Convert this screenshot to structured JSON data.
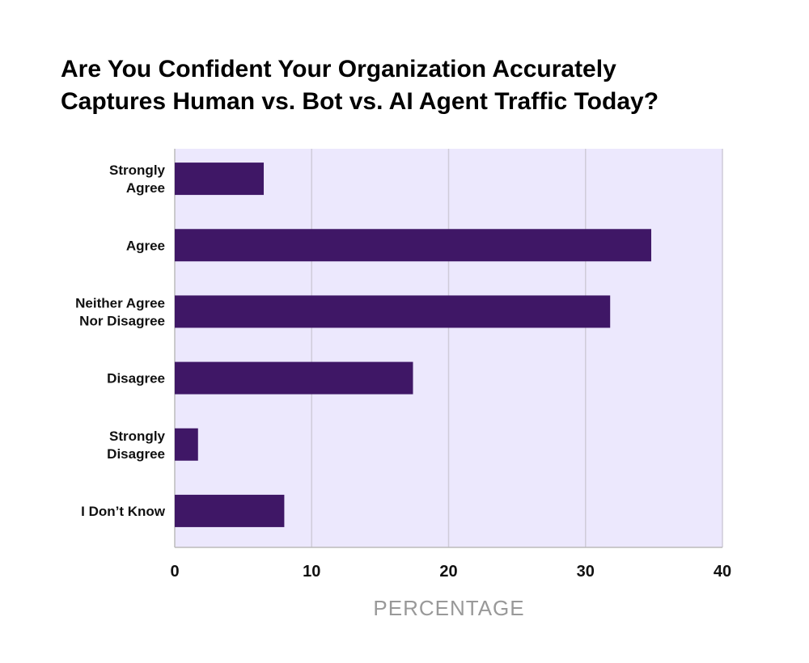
{
  "chart_data": {
    "type": "bar",
    "orientation": "horizontal",
    "title_lines": [
      "Are You Confident Your Organization Accurately",
      "Captures Human vs. Bot vs. AI Agent Traffic Today?"
    ],
    "categories": [
      [
        "Strongly",
        "Agree"
      ],
      [
        "Agree"
      ],
      [
        "Neither Agree",
        "Nor Disagree"
      ],
      [
        "Disagree"
      ],
      [
        "Strongly",
        "Disagree"
      ],
      [
        "I Don’t Know"
      ]
    ],
    "values": [
      6.5,
      34.8,
      31.8,
      17.4,
      1.7,
      8.0
    ],
    "xlabel": "PERCENTAGE",
    "ylabel": "",
    "xlim": [
      0,
      40
    ],
    "xticks": [
      "0",
      "10",
      "20",
      "30",
      "40"
    ],
    "grid": true,
    "colors": {
      "bar": "#3f1766",
      "plot_bg": "#ece8fd",
      "grid": "#cfcbd9",
      "axis": "#bbbbbb"
    }
  }
}
